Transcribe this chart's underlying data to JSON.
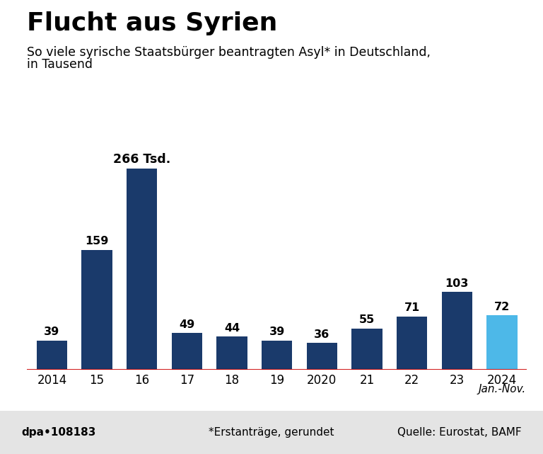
{
  "title": "Flucht aus Syrien",
  "subtitle_line1": "So viele syrische Staatsbürger beantragten Asyl* in Deutschland,",
  "subtitle_line2": "in Tausend",
  "categories": [
    "2014",
    "15",
    "16",
    "17",
    "18",
    "19",
    "2020",
    "21",
    "22",
    "23",
    "2024"
  ],
  "values": [
    39,
    159,
    266,
    49,
    44,
    39,
    36,
    55,
    71,
    103,
    72
  ],
  "bar_colors": [
    "#1a3a6b",
    "#1a3a6b",
    "#1a3a6b",
    "#1a3a6b",
    "#1a3a6b",
    "#1a3a6b",
    "#1a3a6b",
    "#1a3a6b",
    "#1a3a6b",
    "#1a3a6b",
    "#4db8e8"
  ],
  "bar_labels": [
    "39",
    "159",
    "266 Tsd.",
    "49",
    "44",
    "39",
    "36",
    "55",
    "71",
    "103",
    "72"
  ],
  "special_label_idx": 2,
  "footer_left": "dpa•108183",
  "footer_center": "*Erstanträge, gerundet",
  "footer_right": "Quelle: Eurostat, BAMF",
  "footer_bg": "#e4e4e4",
  "axis_line_color": "#cc0000",
  "background_color": "#ffffff",
  "title_fontsize": 26,
  "subtitle_fontsize": 12.5,
  "label_fontsize": 11.5,
  "tick_fontsize": 12,
  "footer_fontsize": 11
}
